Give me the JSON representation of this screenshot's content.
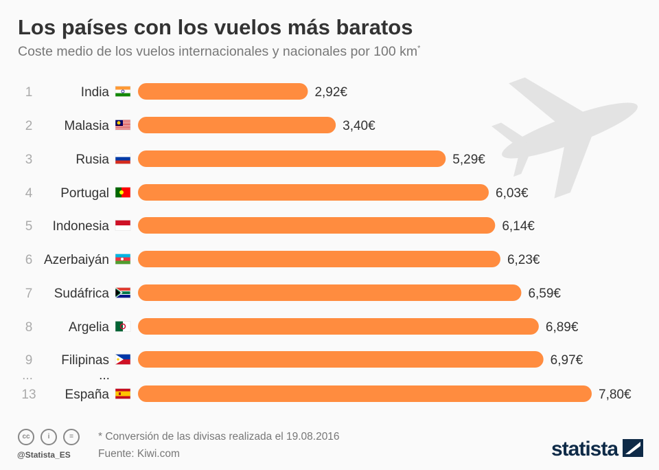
{
  "title": "Los países con los vuelos más baratos",
  "subtitle": "Coste medio de los vuelos internacionales y nacionales por 100 km",
  "subtitle_mark": "*",
  "colors": {
    "bar": "#ff8c3f",
    "plane": "#e3e3e3",
    "logo": "#0e2a47"
  },
  "chart_data": {
    "type": "bar",
    "orientation": "horizontal",
    "unit": "€",
    "ellipsis": "...",
    "categories": [
      "India",
      "Malasia",
      "Rusia",
      "Portugal",
      "Indonesia",
      "Azerbaiyán",
      "Sudáfrica",
      "Argelia",
      "Filipinas",
      "España"
    ],
    "ranks": [
      "1",
      "2",
      "3",
      "4",
      "5",
      "6",
      "7",
      "8",
      "9",
      "13"
    ],
    "flags": [
      "india",
      "malaysia",
      "russia",
      "portugal",
      "indonesia",
      "azerbaijan",
      "south-africa",
      "algeria",
      "philippines",
      "spain"
    ],
    "values": [
      2.92,
      3.4,
      5.29,
      6.03,
      6.14,
      6.23,
      6.59,
      6.89,
      6.97,
      7.8
    ],
    "labels": [
      "2,92€",
      "3,40€",
      "5,29€",
      "6,03€",
      "6,14€",
      "6,23€",
      "6,59€",
      "6,89€",
      "6,97€",
      "7,80€"
    ]
  },
  "footer": {
    "note": "* Conversión de las divisas realizada el 19.08.2016",
    "source": "Fuente: Kiwi.com",
    "handle": "@Statista_ES",
    "logo": "statista",
    "license_icons": [
      "cc",
      "by",
      "nd"
    ]
  }
}
